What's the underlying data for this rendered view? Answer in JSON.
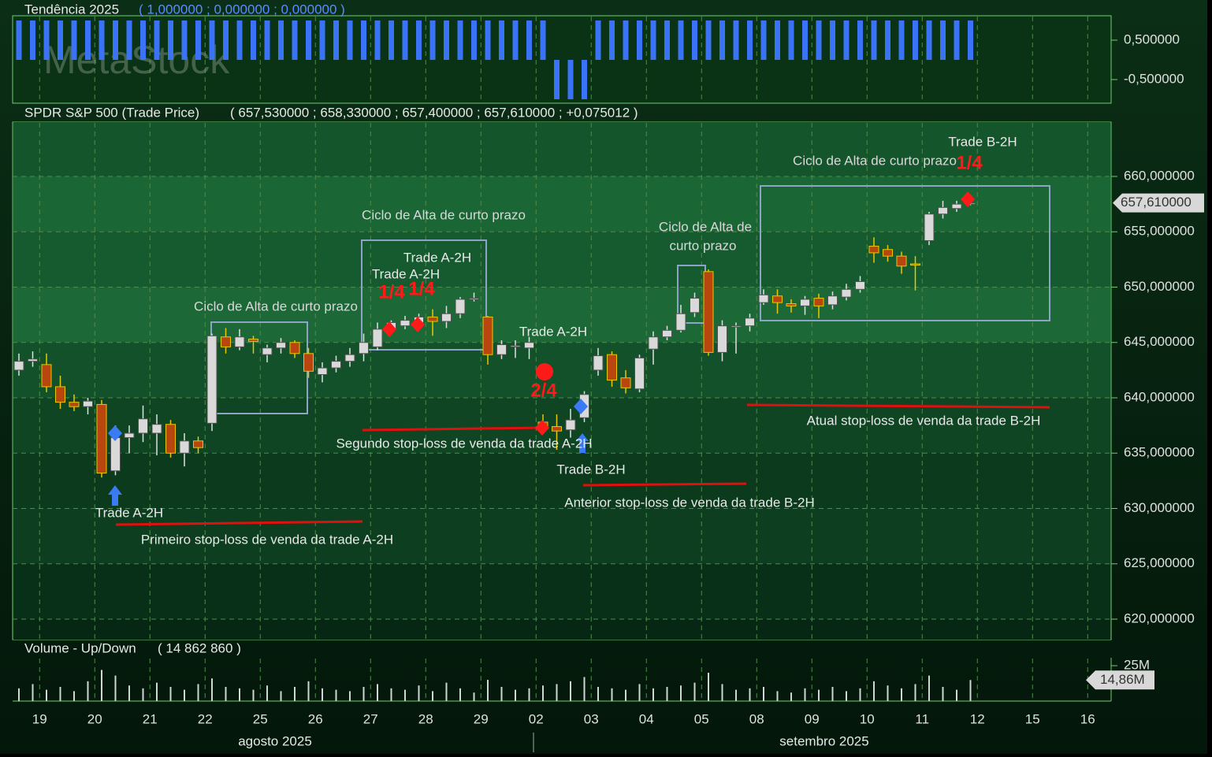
{
  "watermark": "MetaStock",
  "chart_data": [
    {
      "type": "bar",
      "title": "Tendência 2025",
      "readout": "( 1,000000 ; 0,000000 ; 0,000000 )",
      "color": "#3a73f5",
      "ylim": [
        -1.1,
        1.12
      ],
      "yticks": [
        {
          "value": 0.5,
          "label": "0,500000"
        },
        {
          "value": -0.5,
          "label": "-0,500000"
        }
      ],
      "values": [
        1,
        1,
        1,
        1,
        1,
        1,
        1,
        1,
        1,
        1,
        1,
        1,
        1,
        1,
        1,
        1,
        1,
        1,
        1,
        1,
        1,
        1,
        1,
        1,
        1,
        1,
        1,
        1,
        1,
        1,
        1,
        1,
        1,
        1,
        1,
        1,
        1,
        1,
        1,
        -1,
        -1,
        -1,
        1,
        1,
        1,
        1,
        1,
        1,
        1,
        1,
        1,
        1,
        1,
        1,
        1,
        1,
        1,
        1,
        1,
        1,
        1,
        1,
        1,
        1,
        1,
        1,
        1,
        1,
        1,
        1,
        null,
        null,
        null,
        null,
        null,
        null,
        null,
        null,
        null,
        null
      ]
    },
    {
      "type": "candlestick",
      "title": "SPDR S&P 500 (Trade Price)",
      "readout": "( 657,530000 ; 658,330000 ; 657,400000 ; 657,610000 ; +0,075012 )",
      "last_label": "657,610000",
      "up_color": "#d9d9d9",
      "down_color": "#b8460e",
      "down_edge": "#e8c800",
      "ylim": [
        618.15,
        664.91
      ],
      "yticks": [
        {
          "value": 620,
          "label": "620,000000"
        },
        {
          "value": 625,
          "label": "625,000000"
        },
        {
          "value": 630,
          "label": "630,000000"
        },
        {
          "value": 635,
          "label": "635,000000"
        },
        {
          "value": 640,
          "label": "640,000000"
        },
        {
          "value": 645,
          "label": "645,000000"
        },
        {
          "value": 650,
          "label": "650,000000"
        },
        {
          "value": 655,
          "label": "655,000000"
        },
        {
          "value": 660,
          "label": "660,000000"
        }
      ],
      "open": [
        642.5,
        643.3,
        643,
        641,
        639.6,
        639.2,
        639.4,
        633.4,
        636.4,
        636.8,
        636.8,
        637.6,
        635,
        636.1,
        637.7,
        645.5,
        644.6,
        645.3,
        643.9,
        644.5,
        645,
        644,
        642.1,
        642.7,
        643.3,
        644,
        644.6,
        646.2,
        646.5,
        646.8,
        647.3,
        646.9,
        647.6,
        648.9,
        647.3,
        643.9,
        644.6,
        644.5,
        637.8,
        637.4,
        637.1,
        638.2,
        642.5,
        643.9,
        641.8,
        640.8,
        644.4,
        645.5,
        646.1,
        647.7,
        651.4,
        644.1,
        646.4,
        646.5,
        648.6,
        649.2,
        648.5,
        648.3,
        649,
        648.4,
        649.1,
        649.8,
        653.7,
        653.4,
        652.8,
        652.1,
        654.2,
        656.6,
        657.1,
        657.53,
        null,
        null,
        null,
        null,
        null,
        null,
        null,
        null,
        null,
        null
      ],
      "high": [
        644,
        644.2,
        644,
        642,
        640.3,
        640,
        639.8,
        637.5,
        637.5,
        639.3,
        638.5,
        638,
        636.8,
        636.5,
        645.8,
        646.3,
        646.2,
        645.6,
        644.8,
        645.4,
        645.2,
        644.5,
        643.2,
        643.8,
        644.5,
        645.8,
        646.8,
        647,
        647.4,
        647.6,
        648,
        648.3,
        649.1,
        649.5,
        647.4,
        645.2,
        645.2,
        645.5,
        638.5,
        638.5,
        639,
        640.6,
        644.5,
        644.2,
        642.5,
        643.9,
        646,
        646.5,
        648.4,
        649.5,
        651.6,
        647,
        646.8,
        647.6,
        649.8,
        649.8,
        648.9,
        649.2,
        649.4,
        649.6,
        650.3,
        651,
        654.5,
        653.8,
        653.2,
        652.8,
        656.8,
        657.8,
        657.8,
        658.33,
        null,
        null,
        null,
        null,
        null,
        null,
        null,
        null,
        null,
        null
      ],
      "low": [
        642,
        642.8,
        640.5,
        639,
        638.8,
        638.5,
        632.8,
        633,
        635,
        636,
        634.8,
        634.6,
        633.8,
        635,
        637,
        644,
        644.3,
        644,
        643.2,
        644,
        643.6,
        641.8,
        641.4,
        642.3,
        642.8,
        643.3,
        644.3,
        646,
        646.2,
        646.4,
        645.6,
        646.3,
        647.2,
        648.7,
        643,
        643.5,
        643.6,
        643.5,
        636.9,
        635.3,
        636.4,
        637.8,
        642,
        641,
        640.4,
        640.5,
        643,
        645.2,
        645.9,
        647.3,
        643.8,
        643.3,
        644,
        646,
        648.4,
        647.6,
        647.7,
        647.5,
        647.2,
        648,
        648.8,
        649.5,
        652.2,
        652.3,
        651.2,
        649.7,
        653.8,
        656.2,
        656.8,
        657.4,
        null,
        null,
        null,
        null,
        null,
        null,
        null,
        null,
        null,
        null
      ],
      "close": [
        643.3,
        643.5,
        641,
        639.6,
        639.2,
        639.7,
        633.2,
        636.4,
        636.8,
        638.1,
        637.6,
        635,
        636.1,
        635.5,
        645.6,
        644.6,
        645.5,
        645.1,
        644.5,
        645,
        644,
        642.4,
        642.7,
        643.3,
        643.9,
        645,
        646.2,
        646.8,
        647,
        647.3,
        646.9,
        647.6,
        648.9,
        649,
        643.9,
        644.8,
        644.7,
        645,
        637.2,
        637,
        638,
        640.3,
        643.8,
        641.6,
        640.9,
        643.6,
        645.5,
        646.1,
        647.6,
        649,
        644.1,
        646.5,
        646.5,
        647.2,
        649.3,
        648.6,
        648.3,
        648.9,
        648.3,
        649.2,
        649.8,
        650.5,
        653.1,
        652.8,
        651.9,
        652,
        656.6,
        657.2,
        657.5,
        657.61,
        null,
        null,
        null,
        null,
        null,
        null,
        null,
        null,
        null,
        null
      ],
      "annotations": [
        "Ciclo de Alta de curto prazo",
        "Ciclo de Alta de curto prazo",
        "Ciclo de Alta de",
        "curto prazo",
        "Ciclo de Alta de curto prazo",
        "Trade B-2H",
        "Trade A-2H",
        "Trade A-2H",
        "1/4",
        "1/4",
        "1/4",
        "Trade A-2H",
        "2/4",
        "Segundo stop-loss de venda da trade A-2H",
        "Trade B-2H",
        "Anterior stop-loss de venda da trade B-2H",
        "Atual stop-loss de venda da trade B-2H",
        "Trade A-2H",
        "Primeiro stop-loss de venda da trade A-2H"
      ]
    },
    {
      "type": "bar",
      "title": "Volume - Up/Down",
      "readout": "( 14 862 860 )",
      "last_label": "14,86M",
      "color": "#cfd8cf",
      "ylim": [
        0,
        30600000
      ],
      "yticks": [
        {
          "value": 25000000,
          "label": "25M"
        }
      ],
      "values": [
        9000000,
        12000000,
        8000000,
        10000000,
        7000000,
        14000000,
        22000000,
        18000000,
        11000000,
        9000000,
        13000000,
        10000000,
        8000000,
        12000000,
        16000000,
        10000000,
        9000000,
        8000000,
        11000000,
        7000000,
        10000000,
        14000000,
        9000000,
        8000000,
        7000000,
        10000000,
        12000000,
        9000000,
        8000000,
        11000000,
        7000000,
        13000000,
        9000000,
        6000000,
        15000000,
        10000000,
        8000000,
        9000000,
        11000000,
        12000000,
        14000000,
        17000000,
        10000000,
        9000000,
        8000000,
        12000000,
        9000000,
        10000000,
        11000000,
        13000000,
        20000000,
        12000000,
        8000000,
        9000000,
        10000000,
        7000000,
        6000000,
        9000000,
        8000000,
        10000000,
        7000000,
        9000000,
        14000000,
        11000000,
        9000000,
        12000000,
        18000000,
        10000000,
        8000000,
        14862860,
        null,
        null,
        null,
        null,
        null,
        null,
        null,
        null,
        null,
        null
      ],
      "categories": [
        null,
        "19",
        null,
        null,
        null,
        "20",
        null,
        null,
        null,
        "21",
        null,
        null,
        null,
        "22",
        null,
        null,
        null,
        "25",
        null,
        null,
        null,
        "26",
        null,
        null,
        null,
        "27",
        null,
        null,
        null,
        "28",
        null,
        null,
        null,
        "29",
        null,
        null,
        null,
        "02",
        null,
        null,
        null,
        "03",
        null,
        null,
        null,
        "04",
        null,
        null,
        null,
        "05",
        null,
        null,
        null,
        "08",
        null,
        null,
        null,
        "09",
        null,
        null,
        null,
        "10",
        null,
        null,
        null,
        "11",
        null,
        null,
        null,
        "12",
        null,
        null,
        null,
        "15",
        null,
        null,
        null,
        "16",
        null,
        null
      ],
      "months": [
        "agosto 2025",
        "setembro 2025"
      ]
    }
  ]
}
